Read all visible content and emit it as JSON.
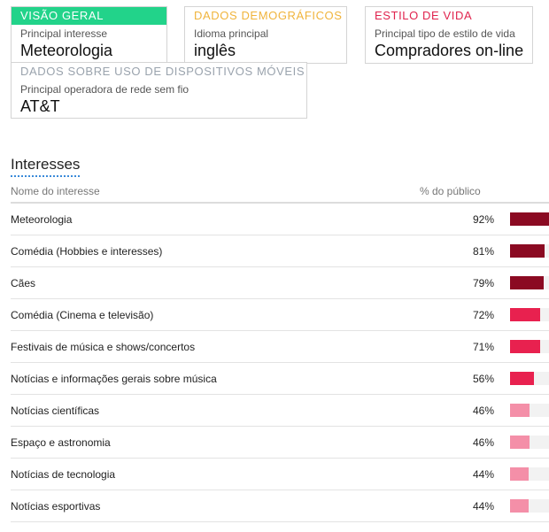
{
  "cards": {
    "overview": {
      "header": "VISÃO GERAL",
      "label": "Principal interesse",
      "value": "Meteorologia",
      "color": "#22d38a"
    },
    "demographics": {
      "header": "DADOS DEMOGRÁFICOS",
      "label": "Idioma principal",
      "value": "inglês",
      "color": "#f0b43c"
    },
    "lifestyle": {
      "header": "ESTILO DE VIDA",
      "label": "Principal tipo de estilo de vida",
      "value": "Compradores on-line",
      "color": "#e0244e"
    },
    "mobile": {
      "header": "DADOS SOBRE USO DE DISPOSITIVOS MÓVEIS",
      "label": "Principal operadora de rede sem fio",
      "value": "AT&T",
      "color": "#9aa3ad"
    }
  },
  "interests": {
    "title": "Interesses",
    "col_name": "Nome do interesse",
    "col_pct": "% do público",
    "rows": [
      {
        "name": "Meteorologia",
        "pct": "92%",
        "value": 92,
        "color": "#8b0a22"
      },
      {
        "name": "Comédia (Hobbies e interesses)",
        "pct": "81%",
        "value": 81,
        "color": "#8b0a22"
      },
      {
        "name": "Cães",
        "pct": "79%",
        "value": 79,
        "color": "#8b0a22"
      },
      {
        "name": "Comédia (Cinema e televisão)",
        "pct": "72%",
        "value": 72,
        "color": "#e8214f"
      },
      {
        "name": "Festivais de música e shows/concertos",
        "pct": "71%",
        "value": 71,
        "color": "#e8214f"
      },
      {
        "name": "Notícias e informações gerais sobre música",
        "pct": "56%",
        "value": 56,
        "color": "#e8214f"
      },
      {
        "name": "Notícias científicas",
        "pct": "46%",
        "value": 46,
        "color": "#f48fa8"
      },
      {
        "name": "Espaço e astronomia",
        "pct": "46%",
        "value": 46,
        "color": "#f48fa8"
      },
      {
        "name": "Notícias de tecnologia",
        "pct": "44%",
        "value": 44,
        "color": "#f48fa8"
      },
      {
        "name": "Notícias esportivas",
        "pct": "44%",
        "value": 44,
        "color": "#f48fa8"
      }
    ]
  }
}
